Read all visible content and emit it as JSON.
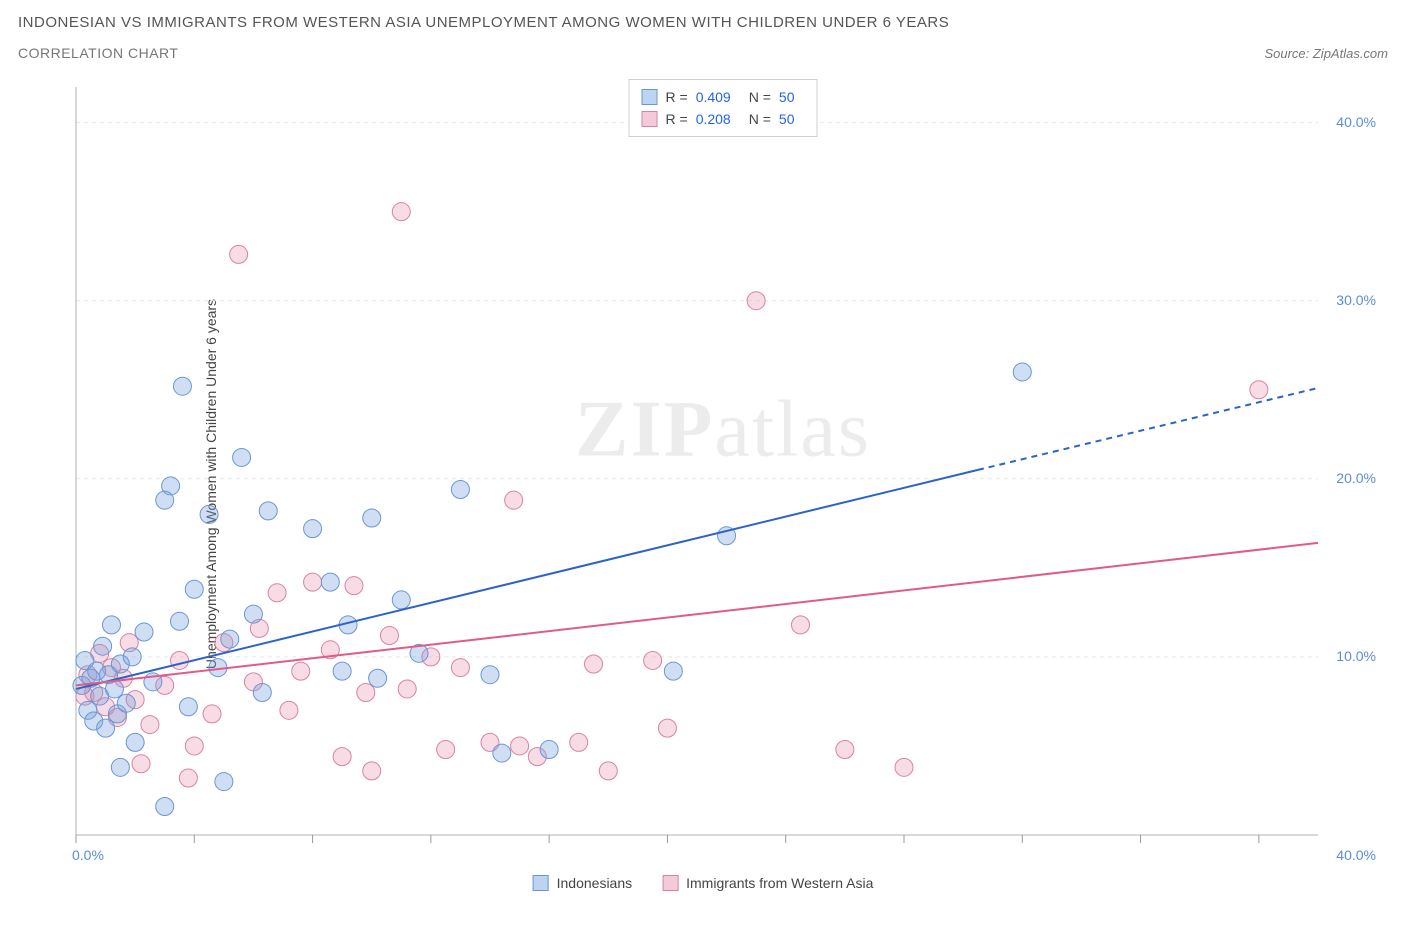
{
  "title": "INDONESIAN VS IMMIGRANTS FROM WESTERN ASIA UNEMPLOYMENT AMONG WOMEN WITH CHILDREN UNDER 6 YEARS",
  "subtitle": "CORRELATION CHART",
  "source_prefix": "Source: ",
  "source_name": "ZipAtlas.com",
  "ylabel": "Unemployment Among Women with Children Under 6 years",
  "watermark_a": "ZIP",
  "watermark_b": "atlas",
  "chart": {
    "type": "scatter",
    "xlim": [
      0,
      42
    ],
    "ylim": [
      0,
      42
    ],
    "x_tick_positions": [
      0,
      4,
      8,
      12,
      16,
      20,
      24,
      28,
      32,
      36,
      40
    ],
    "x_tick_labels_shown": {
      "0": "0.0%",
      "40": "40.0%"
    },
    "y_tick_positions": [
      10,
      20,
      30,
      40
    ],
    "y_tick_labels": [
      "10.0%",
      "20.0%",
      "30.0%",
      "40.0%"
    ],
    "grid_color": "#e8e8e8",
    "axis_color": "#b0b0b0",
    "tick_color": "#999",
    "axis_label_color": "#5b8dd6",
    "background_color": "#ffffff",
    "series": [
      {
        "name": "Indonesians",
        "color_fill": "rgba(120,160,220,0.35)",
        "color_stroke": "#6a96d6",
        "swatch_fill": "#bcd3f2",
        "swatch_stroke": "#6a96d6",
        "R": "0.409",
        "N": "50",
        "trend": {
          "x1": 0,
          "y1": 8.2,
          "x2": 30.5,
          "y2": 20.5,
          "x2_ext": 42,
          "y2_ext": 25.1,
          "color": "#2b63c9",
          "width": 2
        },
        "points": [
          [
            0.2,
            8.4
          ],
          [
            0.3,
            9.8
          ],
          [
            0.4,
            7.0
          ],
          [
            0.5,
            8.8
          ],
          [
            0.6,
            6.4
          ],
          [
            0.7,
            9.2
          ],
          [
            0.8,
            7.8
          ],
          [
            0.9,
            10.6
          ],
          [
            1.0,
            6.0
          ],
          [
            1.1,
            9.0
          ],
          [
            1.2,
            11.8
          ],
          [
            1.3,
            8.2
          ],
          [
            1.4,
            6.8
          ],
          [
            1.5,
            9.6
          ],
          [
            1.7,
            7.4
          ],
          [
            1.9,
            10.0
          ],
          [
            2.0,
            5.2
          ],
          [
            2.3,
            11.4
          ],
          [
            2.6,
            8.6
          ],
          [
            3.0,
            18.8
          ],
          [
            3.2,
            19.6
          ],
          [
            3.5,
            12.0
          ],
          [
            3.8,
            7.2
          ],
          [
            3.6,
            25.2
          ],
          [
            4.0,
            13.8
          ],
          [
            4.5,
            18.0
          ],
          [
            4.8,
            9.4
          ],
          [
            5.2,
            11.0
          ],
          [
            5.6,
            21.2
          ],
          [
            6.0,
            12.4
          ],
          [
            6.3,
            8.0
          ],
          [
            6.5,
            18.2
          ],
          [
            8.0,
            17.2
          ],
          [
            8.6,
            14.2
          ],
          [
            9.0,
            9.2
          ],
          [
            9.2,
            11.8
          ],
          [
            10.0,
            17.8
          ],
          [
            10.2,
            8.8
          ],
          [
            11.0,
            13.2
          ],
          [
            11.6,
            10.2
          ],
          [
            13.0,
            19.4
          ],
          [
            14.0,
            9.0
          ],
          [
            14.4,
            4.6
          ],
          [
            16.0,
            4.8
          ],
          [
            20.2,
            9.2
          ],
          [
            22.0,
            16.8
          ],
          [
            32.0,
            26.0
          ],
          [
            3.0,
            1.6
          ],
          [
            5.0,
            3.0
          ],
          [
            1.5,
            3.8
          ]
        ]
      },
      {
        "name": "Immigigrants from Western Asia",
        "label": "Immigrants from Western Asia",
        "color_fill": "rgba(230,140,170,0.30)",
        "color_stroke": "#d982a6",
        "swatch_fill": "#f4c9d9",
        "swatch_stroke": "#d982a6",
        "R": "0.208",
        "N": "50",
        "trend": {
          "x1": 0,
          "y1": 8.4,
          "x2": 42,
          "y2": 16.4,
          "color": "#e05a8a",
          "width": 2
        },
        "points": [
          [
            0.3,
            7.8
          ],
          [
            0.4,
            9.0
          ],
          [
            0.6,
            8.0
          ],
          [
            0.8,
            10.2
          ],
          [
            1.0,
            7.2
          ],
          [
            1.2,
            9.4
          ],
          [
            1.4,
            6.6
          ],
          [
            1.6,
            8.8
          ],
          [
            1.8,
            10.8
          ],
          [
            2.0,
            7.6
          ],
          [
            2.5,
            6.2
          ],
          [
            3.0,
            8.4
          ],
          [
            3.5,
            9.8
          ],
          [
            4.0,
            5.0
          ],
          [
            5.0,
            10.8
          ],
          [
            5.5,
            32.6
          ],
          [
            6.0,
            8.6
          ],
          [
            6.2,
            11.6
          ],
          [
            6.8,
            13.6
          ],
          [
            7.2,
            7.0
          ],
          [
            7.6,
            9.2
          ],
          [
            8.0,
            14.2
          ],
          [
            8.6,
            10.4
          ],
          [
            9.0,
            4.4
          ],
          [
            9.4,
            14.0
          ],
          [
            9.8,
            8.0
          ],
          [
            10.0,
            3.6
          ],
          [
            10.6,
            11.2
          ],
          [
            11.0,
            35.0
          ],
          [
            11.2,
            8.2
          ],
          [
            12.0,
            10.0
          ],
          [
            12.5,
            4.8
          ],
          [
            13.0,
            9.4
          ],
          [
            14.0,
            5.2
          ],
          [
            14.8,
            18.8
          ],
          [
            15.0,
            5.0
          ],
          [
            15.6,
            4.4
          ],
          [
            17.0,
            5.2
          ],
          [
            17.5,
            9.6
          ],
          [
            18.0,
            3.6
          ],
          [
            19.5,
            9.8
          ],
          [
            20.0,
            6.0
          ],
          [
            23.0,
            30.0
          ],
          [
            24.5,
            11.8
          ],
          [
            26.0,
            4.8
          ],
          [
            28.0,
            3.8
          ],
          [
            40.0,
            25.0
          ],
          [
            3.8,
            3.2
          ],
          [
            2.2,
            4.0
          ],
          [
            4.6,
            6.8
          ]
        ]
      }
    ],
    "marker_radius": 9
  }
}
